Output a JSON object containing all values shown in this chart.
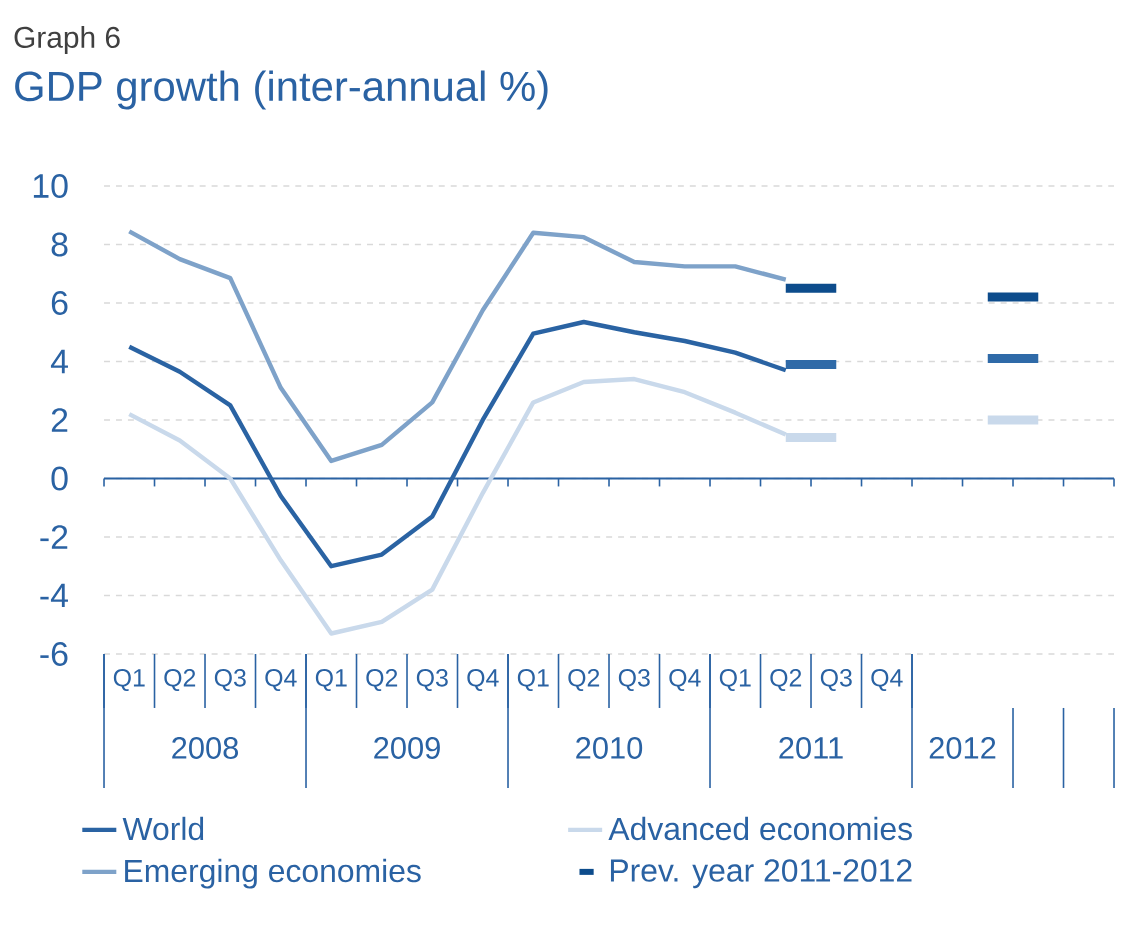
{
  "chart_data": {
    "type": "line",
    "title": "GDP growth (inter-annual %)",
    "subtitle": "Graph 6",
    "categories": [
      "Q1",
      "Q2",
      "Q3",
      "Q4",
      "Q1",
      "Q2",
      "Q3",
      "Q4",
      "Q1",
      "Q2",
      "Q3",
      "Q4",
      "Q1",
      "Q2",
      "Q3",
      "Q4",
      null,
      null,
      null,
      null
    ],
    "annotations": [
      "2008",
      "2009",
      "2010",
      "2011",
      "2012"
    ],
    "series": [
      {
        "name": "World",
        "color": "#2a63a3",
        "values": [
          4.5,
          3.65,
          2.5,
          -0.6,
          -3.0,
          -2.6,
          -1.3,
          2.0,
          4.95,
          5.35,
          5.0,
          4.7,
          4.3,
          3.7,
          null,
          null,
          null,
          null,
          null,
          null
        ]
      },
      {
        "name": "Advanced economies",
        "color": "#c9d9eb",
        "values": [
          2.2,
          1.3,
          0.0,
          -2.8,
          -5.3,
          -4.9,
          -3.8,
          -0.5,
          2.6,
          3.3,
          3.4,
          2.95,
          2.25,
          1.5,
          null,
          null,
          null,
          null,
          null,
          null
        ]
      },
      {
        "name": "Emerging economies",
        "color": "#7ea2c9",
        "values": [
          8.45,
          7.5,
          6.85,
          3.1,
          0.6,
          1.15,
          2.6,
          5.75,
          8.4,
          8.25,
          7.4,
          7.25,
          7.25,
          6.8,
          null,
          null,
          null,
          null,
          null,
          null
        ]
      },
      {
        "name": "Prev. year 2011-2012",
        "color": "#0d4c8c",
        "values": [
          null,
          null,
          null,
          null,
          null,
          null,
          null,
          null,
          null,
          null,
          null,
          null,
          null,
          6.5,
          6.5,
          null,
          null,
          6.2,
          6.2,
          null
        ]
      },
      {
        "color": "#2f6aa8",
        "values": [
          null,
          null,
          null,
          null,
          null,
          null,
          null,
          null,
          null,
          null,
          null,
          null,
          null,
          3.9,
          3.9,
          null,
          null,
          4.1,
          4.1,
          null
        ]
      },
      {
        "color": "#c9d9eb",
        "values": [
          null,
          null,
          null,
          null,
          null,
          null,
          null,
          null,
          null,
          null,
          null,
          null,
          null,
          1.4,
          1.4,
          null,
          null,
          2.0,
          2.0,
          null
        ]
      }
    ],
    "ref_lines": [
      {
        "axis": "y",
        "value": 0,
        "color": "#2a62a3"
      }
    ],
    "ylim": [
      -6,
      10
    ],
    "yticks": [
      -6,
      -4,
      -2,
      0,
      2,
      4,
      6,
      8,
      10
    ],
    "grid": "y",
    "legend": "bottom",
    "line_style": "solid",
    "marker": "none"
  }
}
